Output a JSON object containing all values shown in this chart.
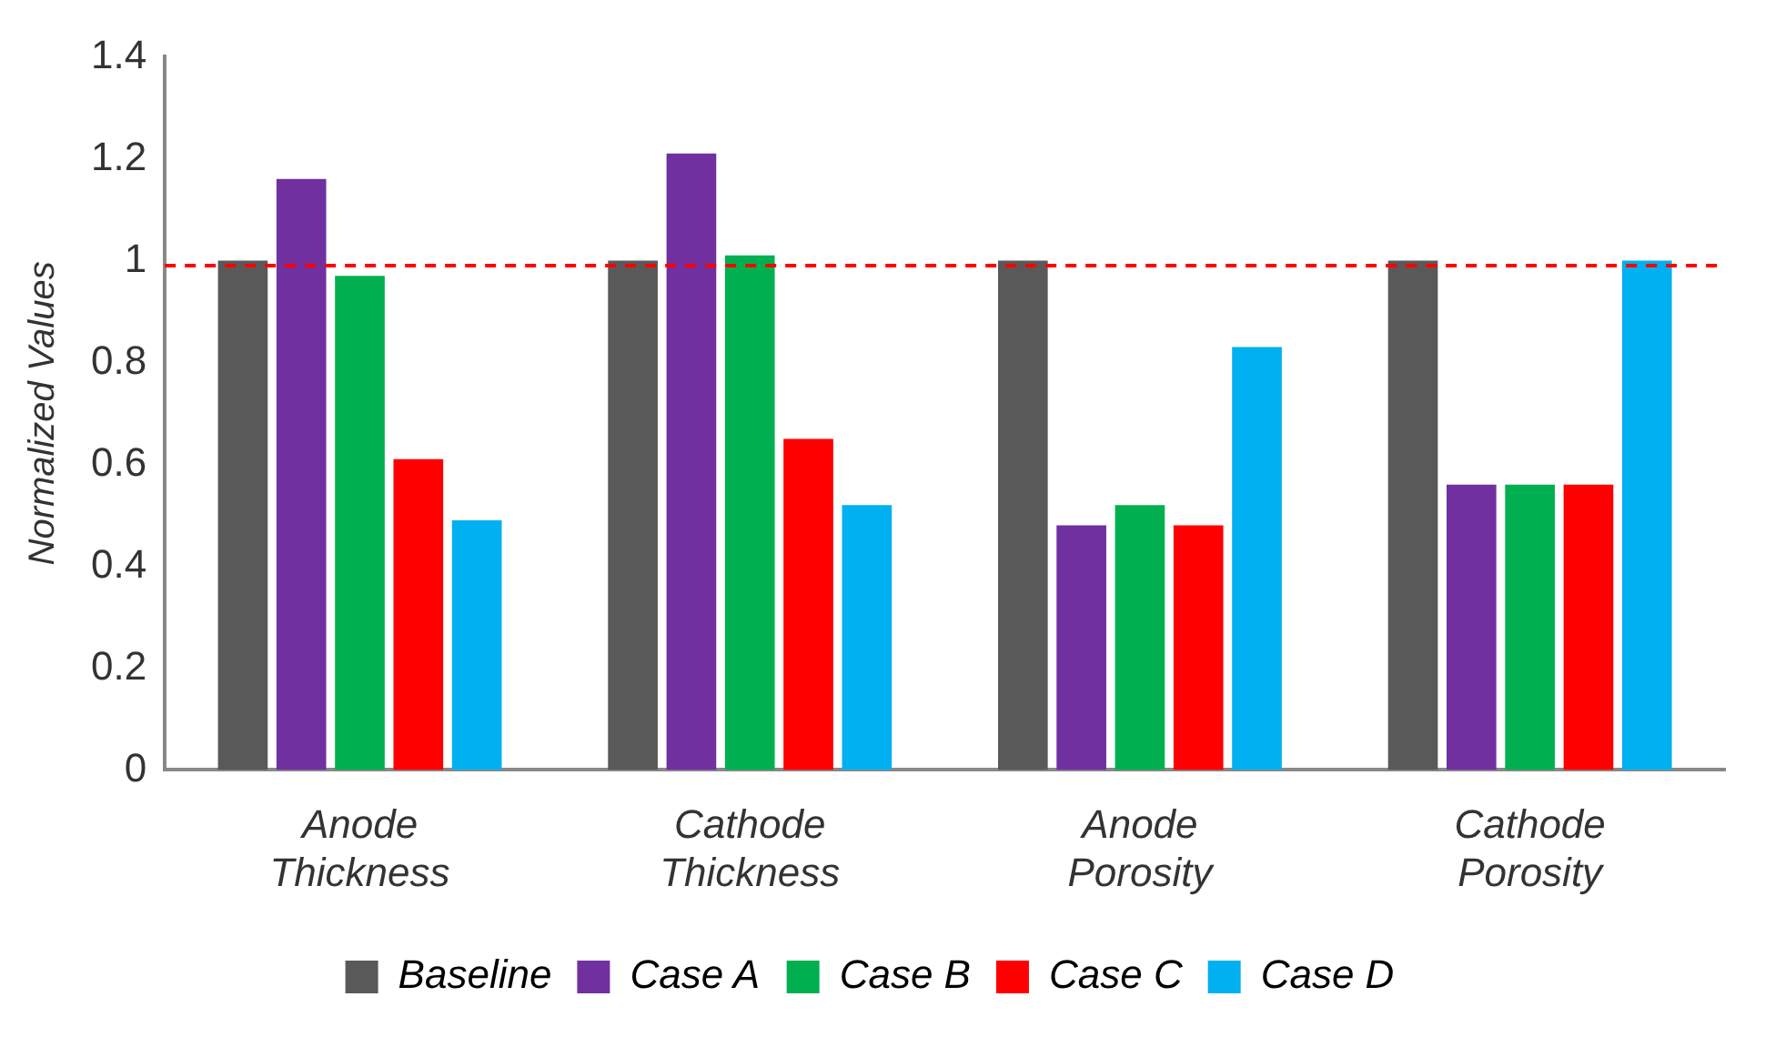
{
  "chart_data": {
    "type": "bar",
    "ylabel": "Normalized Values",
    "categories": [
      "Anode Thickness",
      "Cathode Thickness",
      "Anode Porosity",
      "Cathode Porosity"
    ],
    "series": [
      {
        "name": "Baseline",
        "color": "#595959",
        "values": [
          1,
          1,
          1,
          1
        ]
      },
      {
        "name": "Case A",
        "color": "#7030a0",
        "values": [
          1.16,
          1.21,
          0.48,
          0.56
        ]
      },
      {
        "name": "Case B",
        "color": "#00b050",
        "values": [
          0.97,
          1.01,
          0.52,
          0.56
        ]
      },
      {
        "name": "Case C",
        "color": "#ff0000",
        "values": [
          0.61,
          0.65,
          0.48,
          0.56
        ]
      },
      {
        "name": "Case D",
        "color": "#00b0f0",
        "values": [
          0.49,
          0.52,
          0.83,
          1
        ]
      }
    ],
    "ylim": [
      0,
      1.4
    ],
    "yticks": [
      0,
      0.2,
      0.4,
      0.6,
      0.8,
      1,
      1.2,
      1.4
    ],
    "ref_lines": [
      {
        "axis": "y",
        "value": 0.99,
        "color": "#ff0000",
        "line_style": "dashed"
      }
    ],
    "grid": false,
    "legend": "bottom"
  }
}
